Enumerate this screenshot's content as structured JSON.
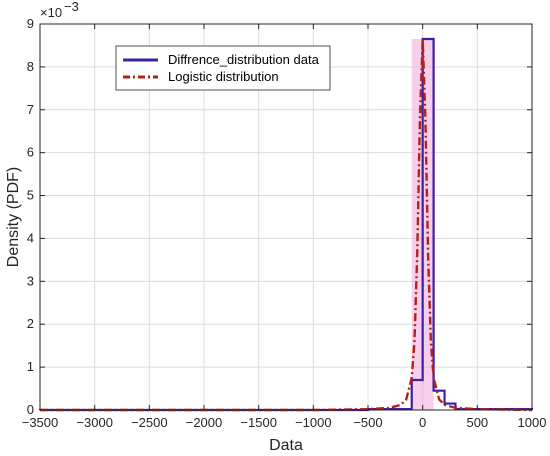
{
  "chart_data": {
    "type": "line",
    "xlabel": "Data",
    "ylabel": "Density (PDF)",
    "y_exponent_label": "×10",
    "y_exponent_power": "−3",
    "xlim": [
      -3500,
      1000
    ],
    "ylim": [
      0,
      9
    ],
    "y_scale": 0.001,
    "grid": true,
    "legend_position": "upper-center",
    "x_ticks": [
      -3500,
      -3000,
      -2500,
      -2000,
      -1500,
      -1000,
      -500,
      0,
      500,
      1000
    ],
    "x_tick_labels": [
      "−3500",
      "−3000",
      "−2500",
      "−2000",
      "−1500",
      "−1000",
      "−500",
      "0",
      "500",
      "1000"
    ],
    "y_ticks": [
      0,
      1,
      2,
      3,
      4,
      5,
      6,
      7,
      8,
      9
    ],
    "y_tick_labels": [
      "0",
      "1",
      "2",
      "3",
      "4",
      "5",
      "6",
      "7",
      "8",
      "9"
    ],
    "series": [
      {
        "name": "Diffrence_distribution data",
        "kind": "stairs",
        "color": "#3d1fa3",
        "bin_edges": [
          -3500,
          -2500,
          -1500,
          -500,
          -100,
          0,
          100,
          200,
          300,
          1000
        ],
        "values": [
          1e-05,
          2e-05,
          3e-05,
          0.02,
          0.7,
          8.65,
          0.45,
          0.15,
          0.02
        ]
      },
      {
        "name": "Logistic distribution",
        "kind": "line",
        "color": "#b22216",
        "dash": "dash-dot",
        "x": [
          -3500,
          -1000,
          -500,
          -300,
          -200,
          -150,
          -100,
          -75,
          -50,
          -25,
          0,
          25,
          50,
          75,
          100,
          150,
          200,
          300,
          500,
          1000
        ],
        "y": [
          0,
          0,
          0.02,
          0.05,
          0.12,
          0.25,
          0.75,
          1.6,
          3.6,
          6.8,
          8.65,
          6.8,
          3.6,
          1.6,
          0.75,
          0.25,
          0.12,
          0.05,
          0.02,
          0
        ]
      }
    ],
    "highlight_color": "#f0a8dc"
  }
}
